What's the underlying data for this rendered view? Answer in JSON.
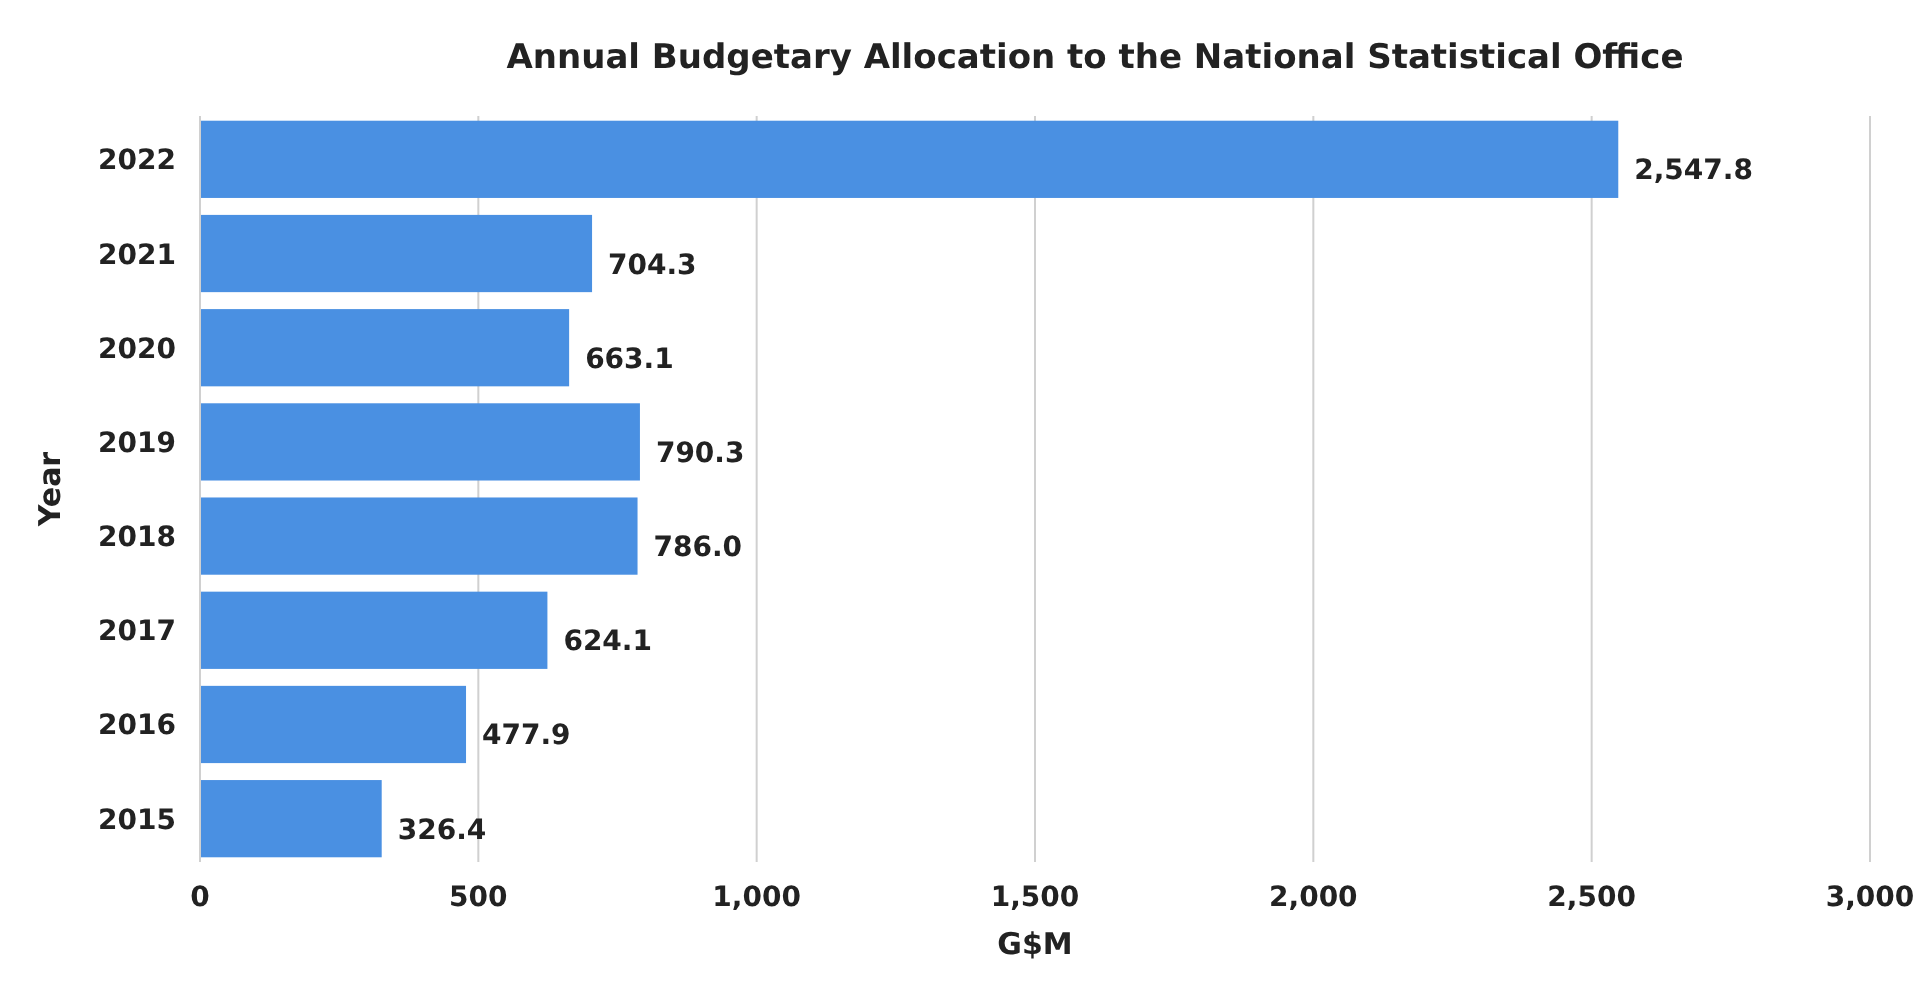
{
  "chart_data": {
    "type": "bar",
    "orientation": "horizontal",
    "title": "Annual Budgetary Allocation to the National Statistical Office",
    "xlabel": "G$M",
    "ylabel": "Year",
    "categories": [
      "2022",
      "2021",
      "2020",
      "2019",
      "2018",
      "2017",
      "2016",
      "2015"
    ],
    "values": [
      2547.8,
      704.3,
      663.1,
      790.3,
      786.0,
      624.1,
      477.9,
      326.4
    ],
    "value_labels": [
      "2,547.8",
      "704.3",
      "663.1",
      "790.3",
      "786.0",
      "624.1",
      "477.9",
      "326.4"
    ],
    "color": "#4a90e2",
    "xlim": [
      0,
      3000
    ],
    "xticks": [
      0,
      500,
      {
        "value": 1000,
        "label": "1,000"
      },
      {
        "value": 1500,
        "label": "1,500"
      },
      {
        "value": 2000,
        "label": "2,000"
      },
      {
        "value": 2500,
        "label": "2,500"
      },
      {
        "value": 3000,
        "label": "3,000"
      }
    ],
    "grid": "x"
  }
}
